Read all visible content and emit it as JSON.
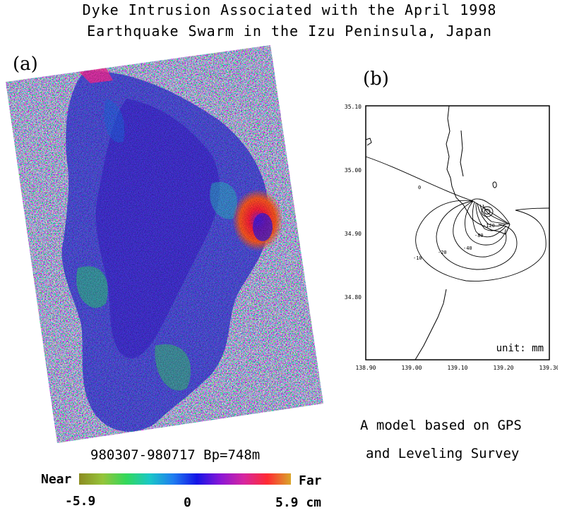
{
  "title_line1": "Dyke Intrusion Associated with the April 1998",
  "title_line2": "Earthquake Swarm in the Izu Peninsula, Japan",
  "panel_a": {
    "label": "(a)",
    "caption": "980307-980717 Bp=748m",
    "colorbar": {
      "left_label": "Near",
      "right_label": "Far",
      "tick_min": "-5.9",
      "tick_mid": "0",
      "tick_max": "5.9 cm",
      "colors": [
        "#8c8c22",
        "#95c43a",
        "#33d85a",
        "#19c7c7",
        "#1f7df0",
        "#1414e6",
        "#8a16d6",
        "#d626a0",
        "#ff2a32",
        "#d9a62a"
      ]
    }
  },
  "panel_b": {
    "label": "(b)",
    "caption_line1": "A model based on GPS",
    "caption_line2": "and Leveling Survey",
    "unit_label": "unit: mm",
    "y_ticks": [
      "35.10",
      "35.00",
      "34.90",
      "34.80"
    ],
    "x_ticks": [
      "138.90",
      "139.00",
      "139.10",
      "139.20",
      "139.30"
    ],
    "contour_labels": [
      "0",
      "-10",
      "-20",
      "-40",
      "-80",
      "-120"
    ]
  }
}
